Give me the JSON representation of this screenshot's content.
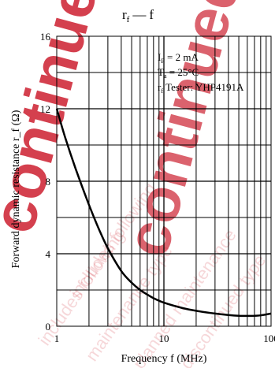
{
  "title": {
    "symbol": "r",
    "symbol_sub": "f",
    "dash": "—",
    "variable": "f"
  },
  "conditions": [
    {
      "main": "I",
      "sub": "F",
      "rest": " = 2 mA"
    },
    {
      "main": "T",
      "sub": "a",
      "rest": " = 25°C"
    },
    {
      "main": "r",
      "sub": "f",
      "rest": " Tester: YHP4191A"
    }
  ],
  "watermark": {
    "color": "#cc1f2f",
    "lines": [
      "continued",
      "includes following",
      "maintenance type",
      "planned maintenance",
      "discontinued type"
    ]
  },
  "chart_data": {
    "type": "line",
    "title": "r_f — f",
    "xlabel": "Frequency  f  (MHz)",
    "ylabel": "Forward dynamic resistance  r_f  (Ω)",
    "x_scale": "log",
    "xlim": [
      1,
      100
    ],
    "ylim": [
      0,
      16
    ],
    "grid": true,
    "x_ticks": [
      {
        "value": 1,
        "label": "1"
      },
      {
        "value": 10,
        "label": "10"
      },
      {
        "value": 100,
        "label": "100"
      }
    ],
    "y_ticks": [
      {
        "value": 0,
        "label": "0"
      },
      {
        "value": 4,
        "label": "4"
      },
      {
        "value": 8,
        "label": "8"
      },
      {
        "value": 12,
        "label": "12"
      },
      {
        "value": 16,
        "label": "16"
      }
    ],
    "series": [
      {
        "x": [
          1,
          1.2,
          1.5,
          2,
          2.5,
          3,
          4,
          5,
          6,
          7,
          8,
          10,
          15,
          20,
          30,
          40,
          50,
          60,
          70,
          80,
          100
        ],
        "y": [
          12.0,
          10.4,
          8.7,
          6.7,
          5.3,
          4.3,
          3.05,
          2.4,
          2.0,
          1.75,
          1.55,
          1.3,
          1.0,
          0.85,
          0.7,
          0.62,
          0.58,
          0.57,
          0.58,
          0.6,
          0.7
        ]
      }
    ]
  }
}
